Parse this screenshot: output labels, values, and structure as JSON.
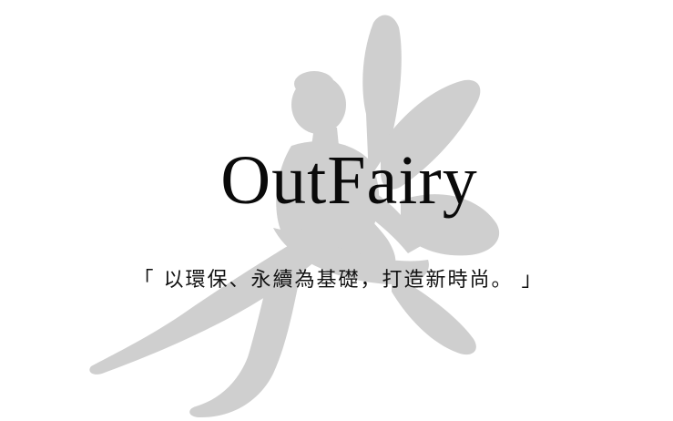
{
  "brand": {
    "name": "OutFairy"
  },
  "tagline": {
    "text": "「 以環保、永續為基礎，打造新時尚。 」"
  },
  "background": {
    "color": "#ffffff",
    "silhouette_color": "#cfcfcf",
    "silhouette": "fairy-silhouette"
  }
}
